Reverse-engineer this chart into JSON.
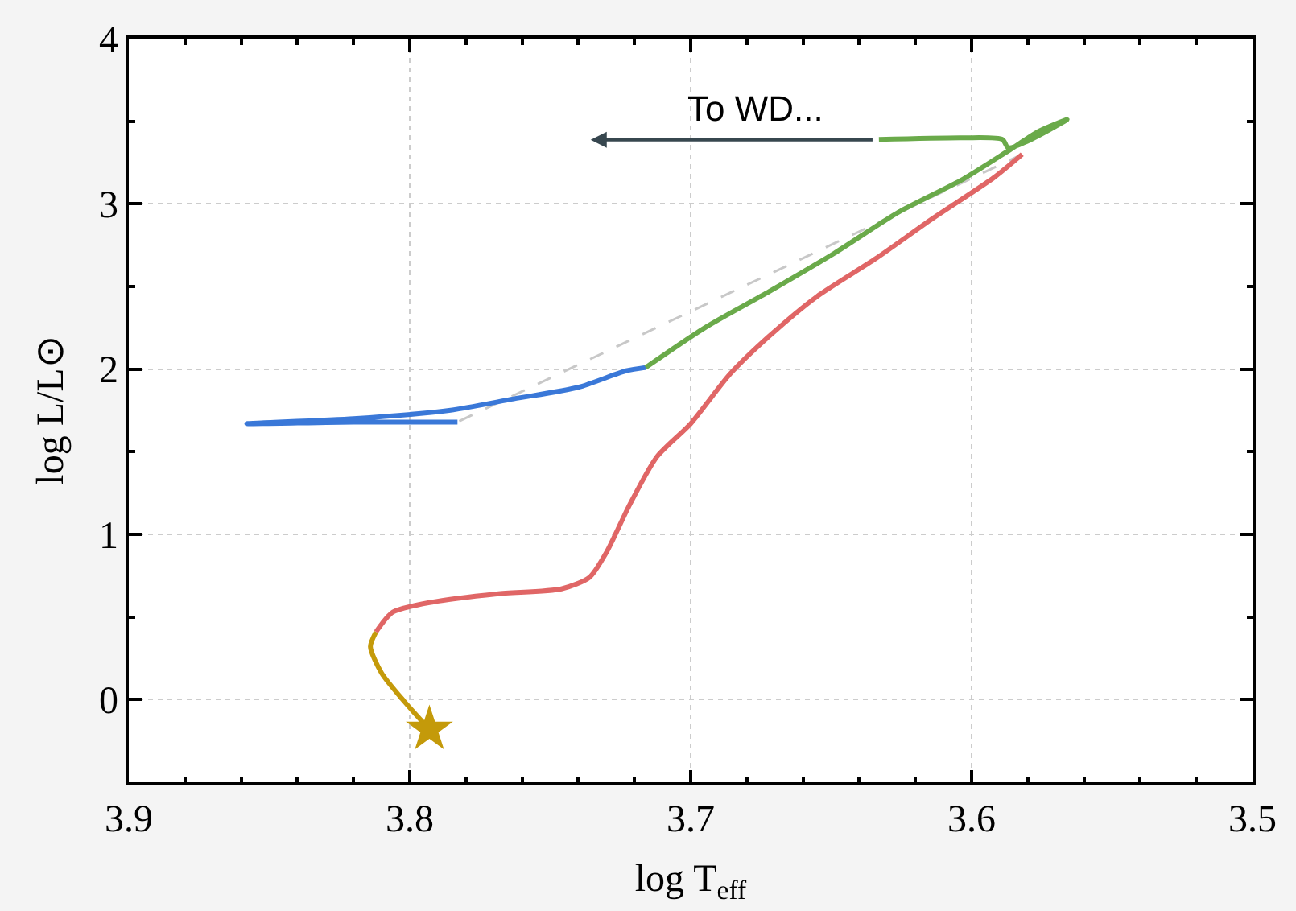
{
  "chart_data": {
    "type": "line",
    "xlabel": "log T$_{eff}$",
    "ylabel": "log L/L⊙",
    "xlim": [
      3.9,
      3.5
    ],
    "ylim": [
      -0.5,
      4
    ],
    "xticks": [
      3.9,
      {
        "value": 3.88,
        "label": null
      },
      {
        "value": 3.86,
        "label": null
      },
      {
        "value": 3.84,
        "label": null
      },
      {
        "value": 3.82,
        "label": null
      },
      3.8,
      {
        "value": 3.78,
        "label": null
      },
      {
        "value": 3.76,
        "label": null
      },
      {
        "value": 3.74,
        "label": null
      },
      {
        "value": 3.72,
        "label": null
      },
      3.7,
      {
        "value": 3.68,
        "label": null
      },
      {
        "value": 3.66,
        "label": null
      },
      {
        "value": 3.64,
        "label": null
      },
      {
        "value": 3.62,
        "label": null
      },
      3.6,
      {
        "value": 3.58,
        "label": null
      },
      {
        "value": 3.56,
        "label": null
      },
      {
        "value": 3.54,
        "label": null
      },
      {
        "value": 3.52,
        "label": null
      },
      3.5
    ],
    "yticks": [
      {
        "value": -0.5,
        "label": null
      },
      0,
      {
        "value": 0.5,
        "label": null
      },
      1,
      {
        "value": 1.5,
        "label": null
      },
      2,
      {
        "value": 2.5,
        "label": null
      },
      3,
      {
        "value": 3.5,
        "label": null
      },
      4
    ],
    "grid": true,
    "series": [
      {
        "line_style": "dashed",
        "color": "#c8c8c8",
        "x": [
          3.582,
          3.783
        ],
        "values": [
          3.3,
          1.68
        ]
      },
      {
        "color": "#c49a0a",
        "x": [
          3.793,
          3.802,
          3.81,
          3.814,
          3.812
        ],
        "values": [
          -0.18,
          -0.01,
          0.16,
          0.32,
          0.41
        ]
      },
      {
        "color": "#e06666",
        "x": [
          3.812,
          3.806,
          3.792,
          3.769,
          3.746,
          3.736,
          3.73,
          3.722,
          3.712,
          3.7,
          3.686,
          3.672,
          3.655,
          3.634,
          3.614,
          3.592,
          3.582
        ],
        "values": [
          0.41,
          0.53,
          0.59,
          0.64,
          0.67,
          0.74,
          0.89,
          1.17,
          1.47,
          1.67,
          1.97,
          2.2,
          2.44,
          2.67,
          2.91,
          3.16,
          3.3
        ]
      },
      {
        "color": "#3a78d8",
        "x": [
          3.783,
          3.82,
          3.858,
          3.82,
          3.786,
          3.763,
          3.74,
          3.723,
          3.716
        ],
        "values": [
          1.68,
          1.68,
          1.67,
          1.7,
          1.75,
          1.82,
          1.89,
          1.99,
          2.01
        ]
      },
      {
        "color": "#6aaa4a",
        "x": [
          3.716,
          3.695,
          3.672,
          3.649,
          3.626,
          3.603,
          3.587,
          3.576,
          3.566,
          3.58,
          3.587,
          3.589,
          3.603,
          3.633
        ],
        "values": [
          2.01,
          2.25,
          2.47,
          2.7,
          2.95,
          3.15,
          3.32,
          3.44,
          3.51,
          3.38,
          3.34,
          3.39,
          3.4,
          3.39
        ]
      },
      {
        "type": "scatter",
        "marker": "star",
        "color": "#c49a0a",
        "x": [
          3.793
        ],
        "values": [
          -0.18
        ]
      }
    ],
    "annotations": [
      "To WD..."
    ]
  }
}
